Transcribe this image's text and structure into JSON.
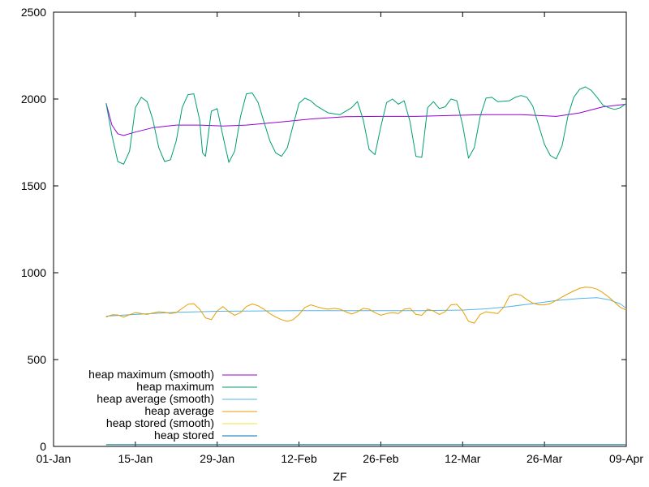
{
  "chart_data": {
    "type": "line",
    "xlabel": "ZF",
    "ylabel": "",
    "ylim": [
      0,
      2500
    ],
    "yticks": [
      0,
      500,
      1000,
      1500,
      2000,
      2500
    ],
    "x_range": [
      "2023-01-01",
      "2023-04-09"
    ],
    "xticks": [
      {
        "date": "2023-01-01",
        "label": "01-Jan"
      },
      {
        "date": "2023-01-15",
        "label": "15-Jan"
      },
      {
        "date": "2023-01-29",
        "label": "29-Jan"
      },
      {
        "date": "2023-02-12",
        "label": "12-Feb"
      },
      {
        "date": "2023-02-26",
        "label": "26-Feb"
      },
      {
        "date": "2023-03-12",
        "label": "12-Mar"
      },
      {
        "date": "2023-03-26",
        "label": "26-Mar"
      },
      {
        "date": "2023-04-09",
        "label": "09-Apr"
      }
    ],
    "grid": false,
    "legend_position": "bottom-left",
    "series": [
      {
        "name": "heap maximum (smooth)",
        "color": "#9400d3",
        "points": [
          [
            "2023-01-10",
            1975
          ],
          [
            "2023-01-11",
            1850
          ],
          [
            "2023-01-12",
            1800
          ],
          [
            "2023-01-13",
            1790
          ],
          [
            "2023-01-15",
            1810
          ],
          [
            "2023-01-18",
            1835
          ],
          [
            "2023-01-22",
            1850
          ],
          [
            "2023-01-26",
            1850
          ],
          [
            "2023-01-30",
            1845
          ],
          [
            "2023-02-03",
            1850
          ],
          [
            "2023-02-08",
            1865
          ],
          [
            "2023-02-14",
            1885
          ],
          [
            "2023-02-20",
            1898
          ],
          [
            "2023-02-26",
            1900
          ],
          [
            "2023-03-04",
            1900
          ],
          [
            "2023-03-10",
            1905
          ],
          [
            "2023-03-16",
            1910
          ],
          [
            "2023-03-22",
            1910
          ],
          [
            "2023-03-28",
            1900
          ],
          [
            "2023-04-01",
            1920
          ],
          [
            "2023-04-05",
            1955
          ],
          [
            "2023-04-09",
            1970
          ]
        ]
      },
      {
        "name": "heap maximum",
        "color": "#009e73",
        "points": [
          [
            "2023-01-10",
            1975
          ],
          [
            "2023-01-11",
            1790
          ],
          [
            "2023-01-12",
            1640
          ],
          [
            "2023-01-13",
            1625
          ],
          [
            "2023-01-14",
            1700
          ],
          [
            "2023-01-15",
            1950
          ],
          [
            "2023-01-16",
            2010
          ],
          [
            "2023-01-17",
            1985
          ],
          [
            "2023-01-18",
            1880
          ],
          [
            "2023-01-19",
            1720
          ],
          [
            "2023-01-20",
            1640
          ],
          [
            "2023-01-21",
            1650
          ],
          [
            "2023-01-22",
            1760
          ],
          [
            "2023-01-23",
            1950
          ],
          [
            "2023-01-24",
            2025
          ],
          [
            "2023-01-25",
            2030
          ],
          [
            "2023-01-26",
            1880
          ],
          [
            "2023-01-26T12:00",
            1690
          ],
          [
            "2023-01-27",
            1670
          ],
          [
            "2023-01-28",
            1930
          ],
          [
            "2023-01-29",
            1945
          ],
          [
            "2023-01-30",
            1785
          ],
          [
            "2023-01-31",
            1635
          ],
          [
            "2023-02-01",
            1700
          ],
          [
            "2023-02-02",
            1900
          ],
          [
            "2023-02-03",
            2030
          ],
          [
            "2023-02-04",
            2035
          ],
          [
            "2023-02-05",
            1980
          ],
          [
            "2023-02-06",
            1870
          ],
          [
            "2023-02-07",
            1760
          ],
          [
            "2023-02-08",
            1690
          ],
          [
            "2023-02-09",
            1670
          ],
          [
            "2023-02-10",
            1720
          ],
          [
            "2023-02-11",
            1850
          ],
          [
            "2023-02-12",
            1975
          ],
          [
            "2023-02-13",
            2005
          ],
          [
            "2023-02-14",
            1990
          ],
          [
            "2023-02-15",
            1960
          ],
          [
            "2023-02-17",
            1920
          ],
          [
            "2023-02-19",
            1910
          ],
          [
            "2023-02-21",
            1950
          ],
          [
            "2023-02-22",
            1985
          ],
          [
            "2023-02-23",
            1880
          ],
          [
            "2023-02-24",
            1710
          ],
          [
            "2023-02-25",
            1680
          ],
          [
            "2023-02-26",
            1840
          ],
          [
            "2023-02-27",
            1980
          ],
          [
            "2023-02-28",
            2000
          ],
          [
            "2023-03-01",
            1970
          ],
          [
            "2023-03-02",
            1990
          ],
          [
            "2023-03-03",
            1870
          ],
          [
            "2023-03-04",
            1670
          ],
          [
            "2023-03-05",
            1665
          ],
          [
            "2023-03-06",
            1950
          ],
          [
            "2023-03-07",
            1985
          ],
          [
            "2023-03-08",
            1945
          ],
          [
            "2023-03-09",
            1955
          ],
          [
            "2023-03-10",
            2000
          ],
          [
            "2023-03-11",
            1990
          ],
          [
            "2023-03-12",
            1850
          ],
          [
            "2023-03-13",
            1660
          ],
          [
            "2023-03-14",
            1720
          ],
          [
            "2023-03-15",
            1900
          ],
          [
            "2023-03-16",
            2005
          ],
          [
            "2023-03-17",
            2010
          ],
          [
            "2023-03-18",
            1985
          ],
          [
            "2023-03-20",
            1990
          ],
          [
            "2023-03-21",
            2010
          ],
          [
            "2023-03-22",
            2020
          ],
          [
            "2023-03-23",
            2010
          ],
          [
            "2023-03-24",
            1960
          ],
          [
            "2023-03-25",
            1850
          ],
          [
            "2023-03-26",
            1740
          ],
          [
            "2023-03-27",
            1675
          ],
          [
            "2023-03-28",
            1655
          ],
          [
            "2023-03-29",
            1730
          ],
          [
            "2023-03-30",
            1900
          ],
          [
            "2023-03-31",
            2010
          ],
          [
            "2023-04-01",
            2055
          ],
          [
            "2023-04-02",
            2070
          ],
          [
            "2023-04-03",
            2050
          ],
          [
            "2023-04-04",
            2010
          ],
          [
            "2023-04-05",
            1965
          ],
          [
            "2023-04-06",
            1950
          ],
          [
            "2023-04-07",
            1940
          ],
          [
            "2023-04-08",
            1950
          ],
          [
            "2023-04-09",
            1975
          ]
        ]
      },
      {
        "name": "heap average (smooth)",
        "color": "#56b4e9",
        "points": [
          [
            "2023-01-10",
            750
          ],
          [
            "2023-01-15",
            760
          ],
          [
            "2023-01-22",
            772
          ],
          [
            "2023-01-29",
            778
          ],
          [
            "2023-02-05",
            780
          ],
          [
            "2023-02-12",
            782
          ],
          [
            "2023-02-19",
            782
          ],
          [
            "2023-02-26",
            782
          ],
          [
            "2023-03-05",
            782
          ],
          [
            "2023-03-12",
            785
          ],
          [
            "2023-03-16",
            792
          ],
          [
            "2023-03-20",
            805
          ],
          [
            "2023-03-24",
            822
          ],
          [
            "2023-03-28",
            840
          ],
          [
            "2023-04-01",
            852
          ],
          [
            "2023-04-04",
            856
          ],
          [
            "2023-04-06",
            845
          ],
          [
            "2023-04-08",
            820
          ],
          [
            "2023-04-09",
            795
          ]
        ]
      },
      {
        "name": "heap average",
        "color": "#e69f00",
        "points": [
          [
            "2023-01-10",
            745
          ],
          [
            "2023-01-11",
            758
          ],
          [
            "2023-01-12",
            757
          ],
          [
            "2023-01-13",
            745
          ],
          [
            "2023-01-14",
            758
          ],
          [
            "2023-01-15",
            770
          ],
          [
            "2023-01-16",
            765
          ],
          [
            "2023-01-17",
            760
          ],
          [
            "2023-01-18",
            768
          ],
          [
            "2023-01-19",
            775
          ],
          [
            "2023-01-20",
            772
          ],
          [
            "2023-01-21",
            765
          ],
          [
            "2023-01-22",
            770
          ],
          [
            "2023-01-23",
            795
          ],
          [
            "2023-01-24",
            818
          ],
          [
            "2023-01-25",
            822
          ],
          [
            "2023-01-26",
            790
          ],
          [
            "2023-01-27",
            740
          ],
          [
            "2023-01-28",
            730
          ],
          [
            "2023-01-29",
            780
          ],
          [
            "2023-01-30",
            805
          ],
          [
            "2023-01-31",
            775
          ],
          [
            "2023-02-01",
            755
          ],
          [
            "2023-02-02",
            770
          ],
          [
            "2023-02-03",
            805
          ],
          [
            "2023-02-04",
            820
          ],
          [
            "2023-02-05",
            810
          ],
          [
            "2023-02-06",
            790
          ],
          [
            "2023-02-07",
            765
          ],
          [
            "2023-02-08",
            745
          ],
          [
            "2023-02-09",
            730
          ],
          [
            "2023-02-10",
            720
          ],
          [
            "2023-02-11",
            730
          ],
          [
            "2023-02-12",
            760
          ],
          [
            "2023-02-13",
            800
          ],
          [
            "2023-02-14",
            815
          ],
          [
            "2023-02-15",
            805
          ],
          [
            "2023-02-16",
            795
          ],
          [
            "2023-02-17",
            790
          ],
          [
            "2023-02-18",
            795
          ],
          [
            "2023-02-19",
            790
          ],
          [
            "2023-02-20",
            775
          ],
          [
            "2023-02-21",
            762
          ],
          [
            "2023-02-22",
            775
          ],
          [
            "2023-02-23",
            795
          ],
          [
            "2023-02-24",
            790
          ],
          [
            "2023-02-25",
            770
          ],
          [
            "2023-02-26",
            755
          ],
          [
            "2023-02-27",
            765
          ],
          [
            "2023-02-28",
            770
          ],
          [
            "2023-03-01",
            765
          ],
          [
            "2023-03-02",
            790
          ],
          [
            "2023-03-03",
            795
          ],
          [
            "2023-03-04",
            760
          ],
          [
            "2023-03-05",
            755
          ],
          [
            "2023-03-06",
            790
          ],
          [
            "2023-03-07",
            780
          ],
          [
            "2023-03-08",
            760
          ],
          [
            "2023-03-09",
            775
          ],
          [
            "2023-03-10",
            815
          ],
          [
            "2023-03-11",
            818
          ],
          [
            "2023-03-12",
            780
          ],
          [
            "2023-03-13",
            720
          ],
          [
            "2023-03-14",
            710
          ],
          [
            "2023-03-15",
            760
          ],
          [
            "2023-03-16",
            775
          ],
          [
            "2023-03-17",
            770
          ],
          [
            "2023-03-18",
            765
          ],
          [
            "2023-03-19",
            800
          ],
          [
            "2023-03-20",
            865
          ],
          [
            "2023-03-21",
            878
          ],
          [
            "2023-03-22",
            870
          ],
          [
            "2023-03-23",
            845
          ],
          [
            "2023-03-24",
            825
          ],
          [
            "2023-03-25",
            815
          ],
          [
            "2023-03-26",
            815
          ],
          [
            "2023-03-27",
            822
          ],
          [
            "2023-03-28",
            840
          ],
          [
            "2023-03-29",
            860
          ],
          [
            "2023-03-30",
            878
          ],
          [
            "2023-03-31",
            895
          ],
          [
            "2023-04-01",
            910
          ],
          [
            "2023-04-02",
            917
          ],
          [
            "2023-04-03",
            915
          ],
          [
            "2023-04-04",
            905
          ],
          [
            "2023-04-05",
            885
          ],
          [
            "2023-04-06",
            860
          ],
          [
            "2023-04-07",
            830
          ],
          [
            "2023-04-08",
            800
          ],
          [
            "2023-04-09",
            785
          ]
        ]
      },
      {
        "name": "heap stored (smooth)",
        "color": "#f0e442",
        "points": [
          [
            "2023-01-10",
            10
          ],
          [
            "2023-04-09",
            10
          ]
        ]
      },
      {
        "name": "heap stored",
        "color": "#0072b2",
        "points": [
          [
            "2023-01-10",
            10
          ],
          [
            "2023-04-09",
            10
          ]
        ]
      }
    ]
  }
}
